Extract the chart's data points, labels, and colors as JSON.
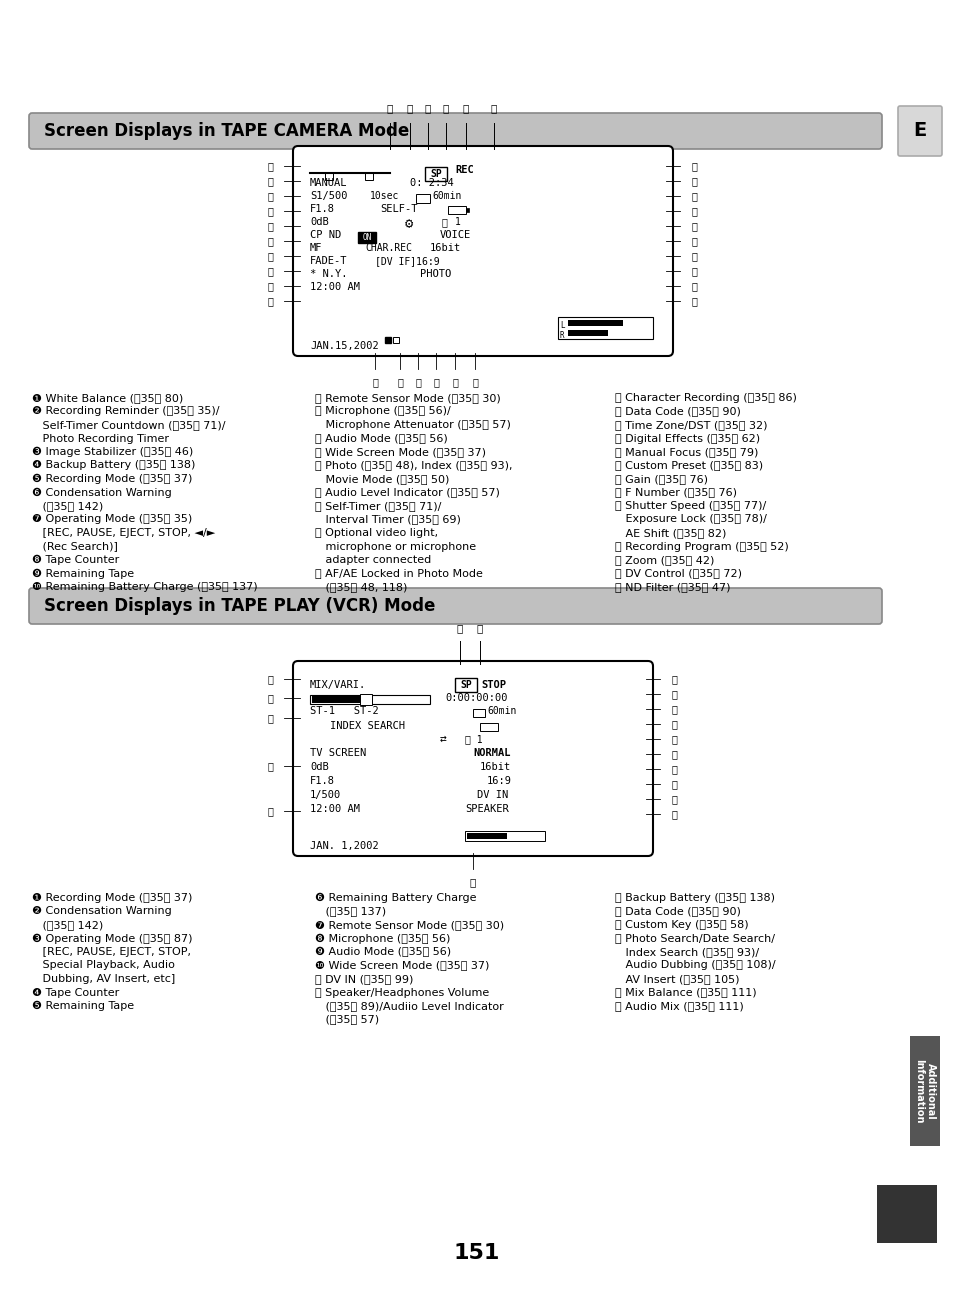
{
  "title1": "Screen Displays in TAPE CAMERA Mode",
  "title2": "Screen Displays in TAPE PLAY (VCR) Mode",
  "page_number": "151",
  "section_letter": "E",
  "bg_color": "#ffffff",
  "header_bg": "#c0c0c0",
  "camera_legend_col1": [
    "❶ White Balance (⎈35⎉ 80)",
    "❷ Recording Reminder (⎈35⎉ 35)/",
    "   Self-Timer Countdown (⎈35⎉ 71)/",
    "   Photo Recording Timer",
    "❸ Image Stabilizer (⎈35⎉ 46)",
    "❹ Backup Battery (⎈35⎉ 138)",
    "❺ Recording Mode (⎈35⎉ 37)",
    "❻ Condensation Warning",
    "   (⎈35⎉ 142)",
    "❼ Operating Mode (⎈35⎉ 35)",
    "   [REC, PAUSE, EJECT, STOP, ◄/►",
    "   (Rec Search)]",
    "❽ Tape Counter",
    "❾ Remaining Tape",
    "❿ Remaining Battery Charge (⎈35⎉ 137)"
  ],
  "camera_legend_col2": [
    "⑪ Remote Sensor Mode (⎈35⎉ 30)",
    "⑫ Microphone (⎈35⎉ 56)/",
    "   Microphone Attenuator (⎈35⎉ 57)",
    "⑬ Audio Mode (⎈35⎉ 56)",
    "⑭ Wide Screen Mode (⎈35⎉ 37)",
    "⑮ Photo (⎈35⎉ 48), Index (⎈35⎉ 93),",
    "   Movie Mode (⎈35⎉ 50)",
    "⑯ Audio Level Indicator (⎈35⎉ 57)",
    "⑰ Self-Timer (⎈35⎉ 71)/",
    "   Interval Timer (⎈35⎉ 69)",
    "⑱ Optional video light,",
    "   microphone or microphone",
    "   adapter connected",
    "⑲ AF/AE Locked in Photo Mode",
    "   (⎈35⎉ 48, 118)"
  ],
  "camera_legend_col3": [
    "⑳ Character Recording (⎈35⎉ 86)",
    "⑴ Data Code (⎈35⎉ 90)",
    "⑵ Time Zone/DST (⎈35⎉ 32)",
    "⑶ Digital Effects (⎈35⎉ 62)",
    "⑷ Manual Focus (⎈35⎉ 79)",
    "⑸ Custom Preset (⎈35⎉ 83)",
    "⑹ Gain (⎈35⎉ 76)",
    "⑺ F Number (⎈35⎉ 76)",
    "⑻ Shutter Speed (⎈35⎉ 77)/",
    "   Exposure Lock (⎈35⎉ 78)/",
    "   AE Shift (⎈35⎉ 82)",
    "⑼ Recording Program (⎈35⎉ 52)",
    "⑽ Zoom (⎈35⎉ 42)",
    "⑾ DV Control (⎈35⎉ 72)",
    "⑿ ND Filter (⎈35⎉ 47)"
  ],
  "vcr_legend_col1": [
    "❶ Recording Mode (⎈35⎉ 37)",
    "❷ Condensation Warning",
    "   (⎈35⎉ 142)",
    "❸ Operating Mode (⎈35⎉ 87)",
    "   [REC, PAUSE, EJECT, STOP,",
    "   Special Playback, Audio",
    "   Dubbing, AV Insert, etc]",
    "❹ Tape Counter",
    "❺ Remaining Tape"
  ],
  "vcr_legend_col2": [
    "❻ Remaining Battery Charge",
    "   (⎈35⎉ 137)",
    "❼ Remote Sensor Mode (⎈35⎉ 30)",
    "❽ Microphone (⎈35⎉ 56)",
    "❾ Audio Mode (⎈35⎉ 56)",
    "❿ Wide Screen Mode (⎈35⎉ 37)",
    "⑪ DV IN (⎈35⎉ 99)",
    "⑫ Speaker/Headphones Volume",
    "   (⎈35⎉ 89)/Audiio Level Indicator",
    "   (⎈35⎉ 57)"
  ],
  "vcr_legend_col3": [
    "⑬ Backup Battery (⎈35⎉ 138)",
    "⑭ Data Code (⎈35⎉ 90)",
    "⑮ Custom Key (⎈35⎉ 58)",
    "⑯ Photo Search/Date Search/",
    "   Index Search (⎈35⎉ 93)/",
    "   Audio Dubbing (⎈35⎉ 108)/",
    "   AV Insert (⎈35⎉ 105)",
    "⑰ Mix Balance (⎈35⎉ 111)",
    "⑱ Audio Mix (⎈35⎉ 111)"
  ]
}
